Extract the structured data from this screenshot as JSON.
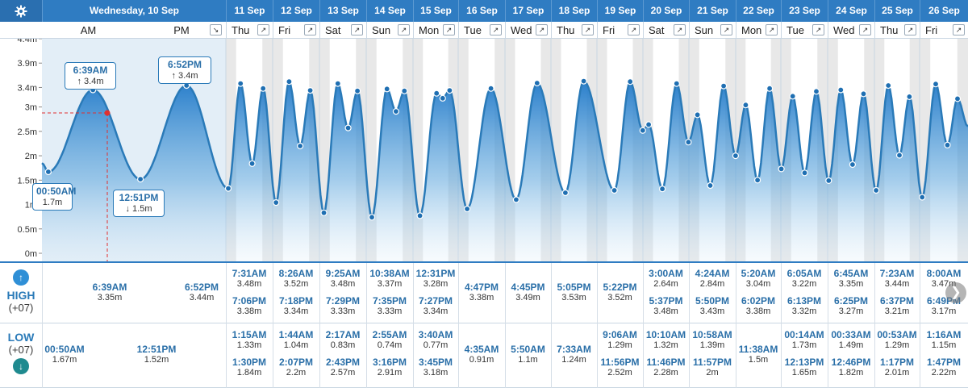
{
  "header": {
    "settings_icon": "gear-icon",
    "today_label": "Wednesday, 10 Sep",
    "am_label": "AM",
    "pm_label": "PM",
    "days": [
      {
        "date": "11 Sep",
        "dow": "Thu"
      },
      {
        "date": "12 Sep",
        "dow": "Fri"
      },
      {
        "date": "13 Sep",
        "dow": "Sat"
      },
      {
        "date": "14 Sep",
        "dow": "Sun"
      },
      {
        "date": "15 Sep",
        "dow": "Mon"
      },
      {
        "date": "16 Sep",
        "dow": "Tue"
      },
      {
        "date": "17 Sep",
        "dow": "Wed"
      },
      {
        "date": "18 Sep",
        "dow": "Thu"
      },
      {
        "date": "19 Sep",
        "dow": "Fri"
      },
      {
        "date": "20 Sep",
        "dow": "Sat"
      },
      {
        "date": "21 Sep",
        "dow": "Sun"
      },
      {
        "date": "22 Sep",
        "dow": "Mon"
      },
      {
        "date": "23 Sep",
        "dow": "Tue"
      },
      {
        "date": "24 Sep",
        "dow": "Wed"
      },
      {
        "date": "25 Sep",
        "dow": "Thu"
      },
      {
        "date": "26 Sep",
        "dow": "Fri"
      }
    ]
  },
  "colors": {
    "header_bg": "#2f7cc2",
    "curve": "#2a7ab8",
    "marker": "#e03030"
  },
  "chart_data": {
    "type": "area",
    "yticks": [
      "0m",
      "0.5m",
      "1m",
      "1.5m",
      "2m",
      "2.5m",
      "3m",
      "3.4m",
      "3.9m",
      "4.4m"
    ],
    "ylim": [
      0,
      4.4
    ],
    "today_callouts": [
      {
        "time": "00:50AM",
        "value": "1.7m",
        "kind": "low"
      },
      {
        "time": "6:39AM",
        "value": "3.4m",
        "kind": "high"
      },
      {
        "time": "12:51PM",
        "value": "1.5m",
        "kind": "low"
      },
      {
        "time": "6:52PM",
        "value": "3.4m",
        "kind": "high"
      }
    ],
    "cursor": {
      "value": 3.0
    },
    "series": [
      {
        "name": "Wednesday, 10 Sep",
        "points": [
          {
            "t": "00:50",
            "h": 1.67
          },
          {
            "t": "06:39",
            "h": 3.35
          },
          {
            "t": "12:51",
            "h": 1.52
          },
          {
            "t": "18:52",
            "h": 3.44
          }
        ]
      }
    ]
  },
  "table": {
    "high_label": "HIGH",
    "low_label": "LOW",
    "tz": "(+07)",
    "up_icon": "arrow-up-icon",
    "down_icon": "arrow-down-icon",
    "today_high": [
      {
        "time": "6:39AM",
        "height": "3.35m"
      },
      {
        "time": "6:52PM",
        "height": "3.44m"
      }
    ],
    "today_low": [
      {
        "time": "00:50AM",
        "height": "1.67m"
      },
      {
        "time": "12:51PM",
        "height": "1.52m"
      }
    ],
    "days": [
      {
        "high": [
          {
            "time": "7:31AM",
            "height": "3.48m"
          },
          {
            "time": "7:06PM",
            "height": "3.38m"
          }
        ],
        "low": [
          {
            "time": "1:15AM",
            "height": "1.33m"
          },
          {
            "time": "1:30PM",
            "height": "1.84m"
          }
        ]
      },
      {
        "high": [
          {
            "time": "8:26AM",
            "height": "3.52m"
          },
          {
            "time": "7:18PM",
            "height": "3.34m"
          }
        ],
        "low": [
          {
            "time": "1:44AM",
            "height": "1.04m"
          },
          {
            "time": "2:07PM",
            "height": "2.2m"
          }
        ]
      },
      {
        "high": [
          {
            "time": "9:25AM",
            "height": "3.48m"
          },
          {
            "time": "7:29PM",
            "height": "3.33m"
          }
        ],
        "low": [
          {
            "time": "2:17AM",
            "height": "0.83m"
          },
          {
            "time": "2:43PM",
            "height": "2.57m"
          }
        ]
      },
      {
        "high": [
          {
            "time": "10:38AM",
            "height": "3.37m"
          },
          {
            "time": "7:35PM",
            "height": "3.33m"
          }
        ],
        "low": [
          {
            "time": "2:55AM",
            "height": "0.74m"
          },
          {
            "time": "3:16PM",
            "height": "2.91m"
          }
        ]
      },
      {
        "high": [
          {
            "time": "12:31PM",
            "height": "3.28m"
          },
          {
            "time": "7:27PM",
            "height": "3.34m"
          }
        ],
        "low": [
          {
            "time": "3:40AM",
            "height": "0.77m"
          },
          {
            "time": "3:45PM",
            "height": "3.18m"
          }
        ]
      },
      {
        "high": [
          {
            "time": "4:47PM",
            "height": "3.38m"
          }
        ],
        "low": [
          {
            "time": "4:35AM",
            "height": "0.91m"
          }
        ]
      },
      {
        "high": [
          {
            "time": "4:45PM",
            "height": "3.49m"
          }
        ],
        "low": [
          {
            "time": "5:50AM",
            "height": "1.1m"
          }
        ]
      },
      {
        "high": [
          {
            "time": "5:05PM",
            "height": "3.53m"
          }
        ],
        "low": [
          {
            "time": "7:33AM",
            "height": "1.24m"
          }
        ]
      },
      {
        "high": [
          {
            "time": "5:22PM",
            "height": "3.52m"
          }
        ],
        "low": [
          {
            "time": "9:06AM",
            "height": "1.29m"
          },
          {
            "time": "11:56PM",
            "height": "2.52m"
          }
        ]
      },
      {
        "high": [
          {
            "time": "3:00AM",
            "height": "2.64m"
          },
          {
            "time": "5:37PM",
            "height": "3.48m"
          }
        ],
        "low": [
          {
            "time": "10:10AM",
            "height": "1.32m"
          },
          {
            "time": "11:46PM",
            "height": "2.28m"
          }
        ]
      },
      {
        "high": [
          {
            "time": "4:24AM",
            "height": "2.84m"
          },
          {
            "time": "5:50PM",
            "height": "3.43m"
          }
        ],
        "low": [
          {
            "time": "10:58AM",
            "height": "1.39m"
          },
          {
            "time": "11:57PM",
            "height": "2m"
          }
        ]
      },
      {
        "high": [
          {
            "time": "5:20AM",
            "height": "3.04m"
          },
          {
            "time": "6:02PM",
            "height": "3.38m"
          }
        ],
        "low": [
          {
            "time": "11:38AM",
            "height": "1.5m"
          }
        ]
      },
      {
        "high": [
          {
            "time": "6:05AM",
            "height": "3.22m"
          },
          {
            "time": "6:13PM",
            "height": "3.32m"
          }
        ],
        "low": [
          {
            "time": "00:14AM",
            "height": "1.73m"
          },
          {
            "time": "12:13PM",
            "height": "1.65m"
          }
        ]
      },
      {
        "high": [
          {
            "time": "6:45AM",
            "height": "3.35m"
          },
          {
            "time": "6:25PM",
            "height": "3.27m"
          }
        ],
        "low": [
          {
            "time": "00:33AM",
            "height": "1.49m"
          },
          {
            "time": "12:46PM",
            "height": "1.82m"
          }
        ]
      },
      {
        "high": [
          {
            "time": "7:23AM",
            "height": "3.44m"
          },
          {
            "time": "6:37PM",
            "height": "3.21m"
          }
        ],
        "low": [
          {
            "time": "00:53AM",
            "height": "1.29m"
          },
          {
            "time": "1:17PM",
            "height": "2.01m"
          }
        ]
      },
      {
        "high": [
          {
            "time": "8:00AM",
            "height": "3.47m"
          },
          {
            "time": "6:49PM",
            "height": "3.17m"
          }
        ],
        "low": [
          {
            "time": "1:16AM",
            "height": "1.15m"
          },
          {
            "time": "1:47PM",
            "height": "2.22m"
          }
        ]
      }
    ]
  },
  "nav": {
    "next_icon": "chevron-right-icon"
  }
}
